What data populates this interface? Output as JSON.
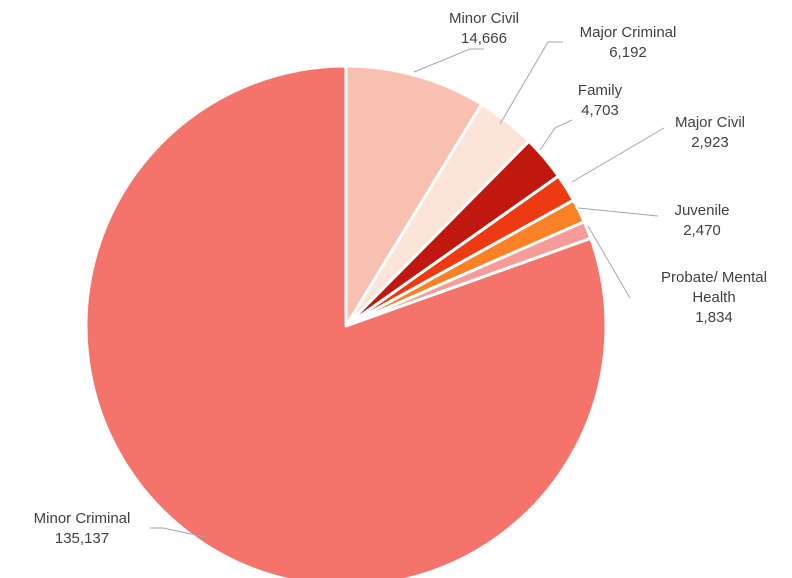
{
  "chart_data": {
    "type": "pie",
    "title": "",
    "start_angle_deg": 0,
    "direction": "clockwise",
    "legend": "none",
    "slices": [
      {
        "name": "Minor Civil",
        "label_lines": [
          "Minor Civil"
        ],
        "value": 14666,
        "value_label": "14,666",
        "color": "#F8C0B0"
      },
      {
        "name": "Major Criminal",
        "label_lines": [
          "Major Criminal"
        ],
        "value": 6192,
        "value_label": "6,192",
        "color": "#FCE4D8"
      },
      {
        "name": "Family",
        "label_lines": [
          "Family"
        ],
        "value": 4703,
        "value_label": "4,703",
        "color": "#C0180E"
      },
      {
        "name": "Major Civil",
        "label_lines": [
          "Major Civil"
        ],
        "value": 2923,
        "value_label": "2,923",
        "color": "#EE3A12"
      },
      {
        "name": "Juvenile",
        "label_lines": [
          "Juvenile"
        ],
        "value": 2470,
        "value_label": "2,470",
        "color": "#FA8125"
      },
      {
        "name": "Probate/ Mental Health",
        "label_lines": [
          "Probate/ Mental",
          "Health"
        ],
        "value": 1834,
        "value_label": "1,834",
        "color": "#F59C98"
      },
      {
        "name": "Minor Criminal",
        "label_lines": [
          "Minor Criminal"
        ],
        "value": 135137,
        "value_label": "135,137",
        "color": "#F4736A"
      }
    ]
  }
}
